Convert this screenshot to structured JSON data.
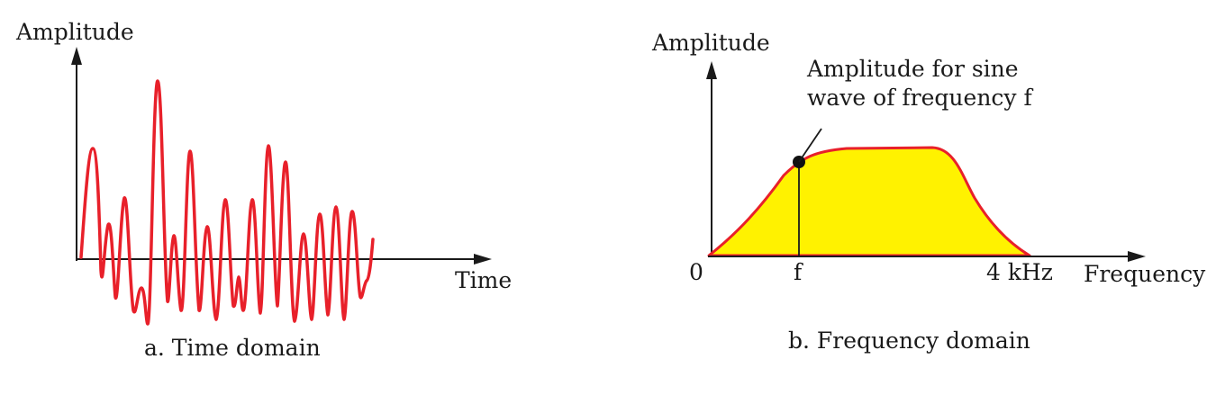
{
  "time_domain": {
    "y_axis_label": "Amplitude",
    "x_axis_label": "Time",
    "caption": "a. Time domain"
  },
  "frequency_domain": {
    "y_axis_label": "Amplitude",
    "x_axis_label": "Frequency",
    "origin_label": "0",
    "f_tick_label": "f",
    "max_tick_label": "4 kHz",
    "annotation_line1": "Amplitude for sine",
    "annotation_line2": "wave of frequency f",
    "caption": "b. Frequency domain"
  },
  "colors": {
    "signal": "#e8202a",
    "spectrum_fill": "#fff200",
    "axis": "#1a1a1a"
  }
}
